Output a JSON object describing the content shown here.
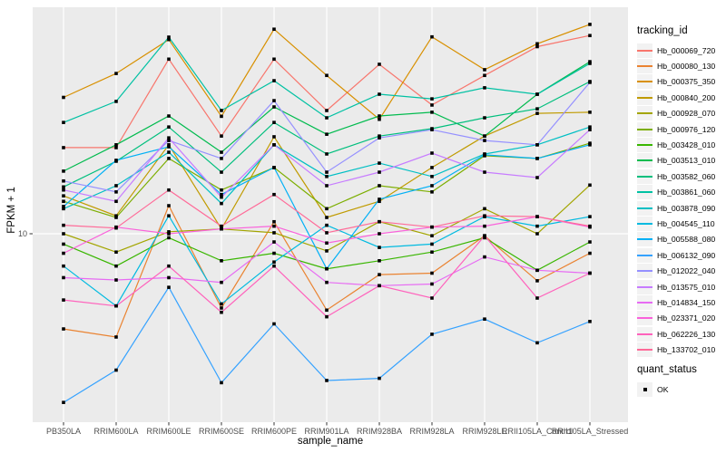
{
  "chart_data": {
    "type": "line",
    "xlabel": "sample_name",
    "ylabel": "FPKM + 1",
    "panel_bg": "#EBEBEB",
    "grid_color": "#FFFFFF",
    "tick_text_color": "#4D4D4D",
    "marker": {
      "shape": "square",
      "color": "#000000"
    },
    "x_categories": [
      "PB350LA",
      "RRIM600LA",
      "RRIM600LE",
      "RRIM600SE",
      "RRIM600PE",
      "RRIM901LA",
      "RRIM928BA",
      "RRIM928LA",
      "RRIM928LE",
      "RRII105LA_Control",
      "RRII105LA_Stressed"
    ],
    "y_axis": {
      "scale": "log10",
      "tick_values": [
        10
      ],
      "tick_labels": [
        "10"
      ]
    },
    "legend": {
      "title": "tracking_id",
      "position": "right"
    },
    "quant_status": {
      "title": "quant_status",
      "items": [
        {
          "label": "OK",
          "marker": "black-square"
        }
      ]
    },
    "series": [
      {
        "name": "Hb_000069_720",
        "color": "#F8766D",
        "values": [
          24,
          24,
          59,
          27,
          59,
          35,
          56,
          37,
          50,
          67,
          75
        ]
      },
      {
        "name": "Hb_000080_130",
        "color": "#EA8331",
        "values": [
          3.8,
          3.5,
          13.3,
          4.7,
          11.3,
          4.6,
          6.6,
          6.7,
          9.8,
          6.2,
          8.2
        ]
      },
      {
        "name": "Hb_000375_350",
        "color": "#D89000",
        "values": [
          40,
          51,
          72,
          33,
          80,
          50,
          32,
          74,
          53,
          69,
          84
        ]
      },
      {
        "name": "Hb_000840_200",
        "color": "#C09B00",
        "values": [
          14.7,
          12,
          24.7,
          10.5,
          26.8,
          11.8,
          13.9,
          19.6,
          27,
          34,
          34.4
        ]
      },
      {
        "name": "Hb_000928_070",
        "color": "#A3A500",
        "values": [
          10,
          8.3,
          10.2,
          10.5,
          10.1,
          8.4,
          11.3,
          9.8,
          12.9,
          10,
          16.4
        ]
      },
      {
        "name": "Hb_000976_120",
        "color": "#7CAE00",
        "values": [
          13.9,
          11.8,
          21.5,
          15.6,
          19.6,
          12.9,
          16.3,
          15.3,
          22.1,
          21.5,
          25.1
        ]
      },
      {
        "name": "Hb_003428_010",
        "color": "#39B600",
        "values": [
          9,
          7.2,
          9.6,
          7.6,
          8.2,
          7,
          7.6,
          8.3,
          9.6,
          6.9,
          9.2
        ]
      },
      {
        "name": "Hb_003513_010",
        "color": "#00BB4E",
        "values": [
          18.9,
          24.7,
          33.1,
          22.9,
          36.3,
          27.5,
          33.1,
          34.4,
          27,
          41.3,
          57.5
        ]
      },
      {
        "name": "Hb_003582_060",
        "color": "#00BF7D",
        "values": [
          16.1,
          20.9,
          29.6,
          18.7,
          31,
          22.5,
          27,
          29.1,
          32.5,
          35.6,
          47
        ]
      },
      {
        "name": "Hb_003861_060",
        "color": "#00C1A3",
        "values": [
          31,
          38.4,
          73.8,
          35,
          47.4,
          32.5,
          41.3,
          39.4,
          44.1,
          41.3,
          56.5
        ]
      },
      {
        "name": "Hb_003878_090",
        "color": "#00BFC4",
        "values": [
          12.9,
          16.3,
          22.9,
          13.6,
          24.7,
          17.9,
          20.5,
          17.9,
          22.5,
          24.7,
          29.6
        ]
      },
      {
        "name": "Hb_004545_110",
        "color": "#00BAE0",
        "values": [
          7.2,
          4.8,
          12,
          4.9,
          7.5,
          10.9,
          8.7,
          9,
          11.9,
          10.8,
          11.9
        ]
      },
      {
        "name": "Hb_005588_080",
        "color": "#00B0F6",
        "values": [
          13.2,
          21.1,
          24.2,
          14.9,
          19.6,
          7,
          14.2,
          16.3,
          22.3,
          21.5,
          24.7
        ]
      },
      {
        "name": "Hb_006132_090",
        "color": "#35A2FF",
        "values": [
          1.8,
          2.5,
          5.8,
          2.2,
          4,
          2.25,
          2.3,
          3.6,
          4.2,
          3.3,
          4.1
        ]
      },
      {
        "name": "Hb_012022_040",
        "color": "#9590FF",
        "values": [
          17.1,
          15.3,
          25.8,
          21.5,
          38.7,
          18.7,
          26.5,
          28.8,
          25.8,
          24.7,
          46.6
        ]
      },
      {
        "name": "Hb_013575_010",
        "color": "#C77CFF",
        "values": [
          15.6,
          13.9,
          26.5,
          14.5,
          24.7,
          16.3,
          18.7,
          22.7,
          18.7,
          17.7,
          28.8
        ]
      },
      {
        "name": "Hb_014834_150",
        "color": "#E76BF3",
        "values": [
          6.4,
          6.25,
          6.4,
          6.1,
          9.2,
          6.1,
          5.9,
          6,
          7.9,
          6.9,
          6.7
        ]
      },
      {
        "name": "Hb_023371_020",
        "color": "#FA62DB",
        "values": [
          8.2,
          10.7,
          10,
          10.5,
          10.8,
          9.1,
          10,
          10.7,
          10.8,
          11.9,
          10.7
        ]
      },
      {
        "name": "Hb_062226_130",
        "color": "#FF62BC",
        "values": [
          5.1,
          4.8,
          7.2,
          4.5,
          7.2,
          4.3,
          5.9,
          5.2,
          9.8,
          5.2,
          6.7
        ]
      },
      {
        "name": "Hb_133702_010",
        "color": "#FF6A98",
        "values": [
          10.9,
          10.6,
          15.6,
          10.8,
          14.9,
          10.1,
          11.3,
          10.7,
          12,
          11.9,
          10.8
        ]
      }
    ]
  }
}
